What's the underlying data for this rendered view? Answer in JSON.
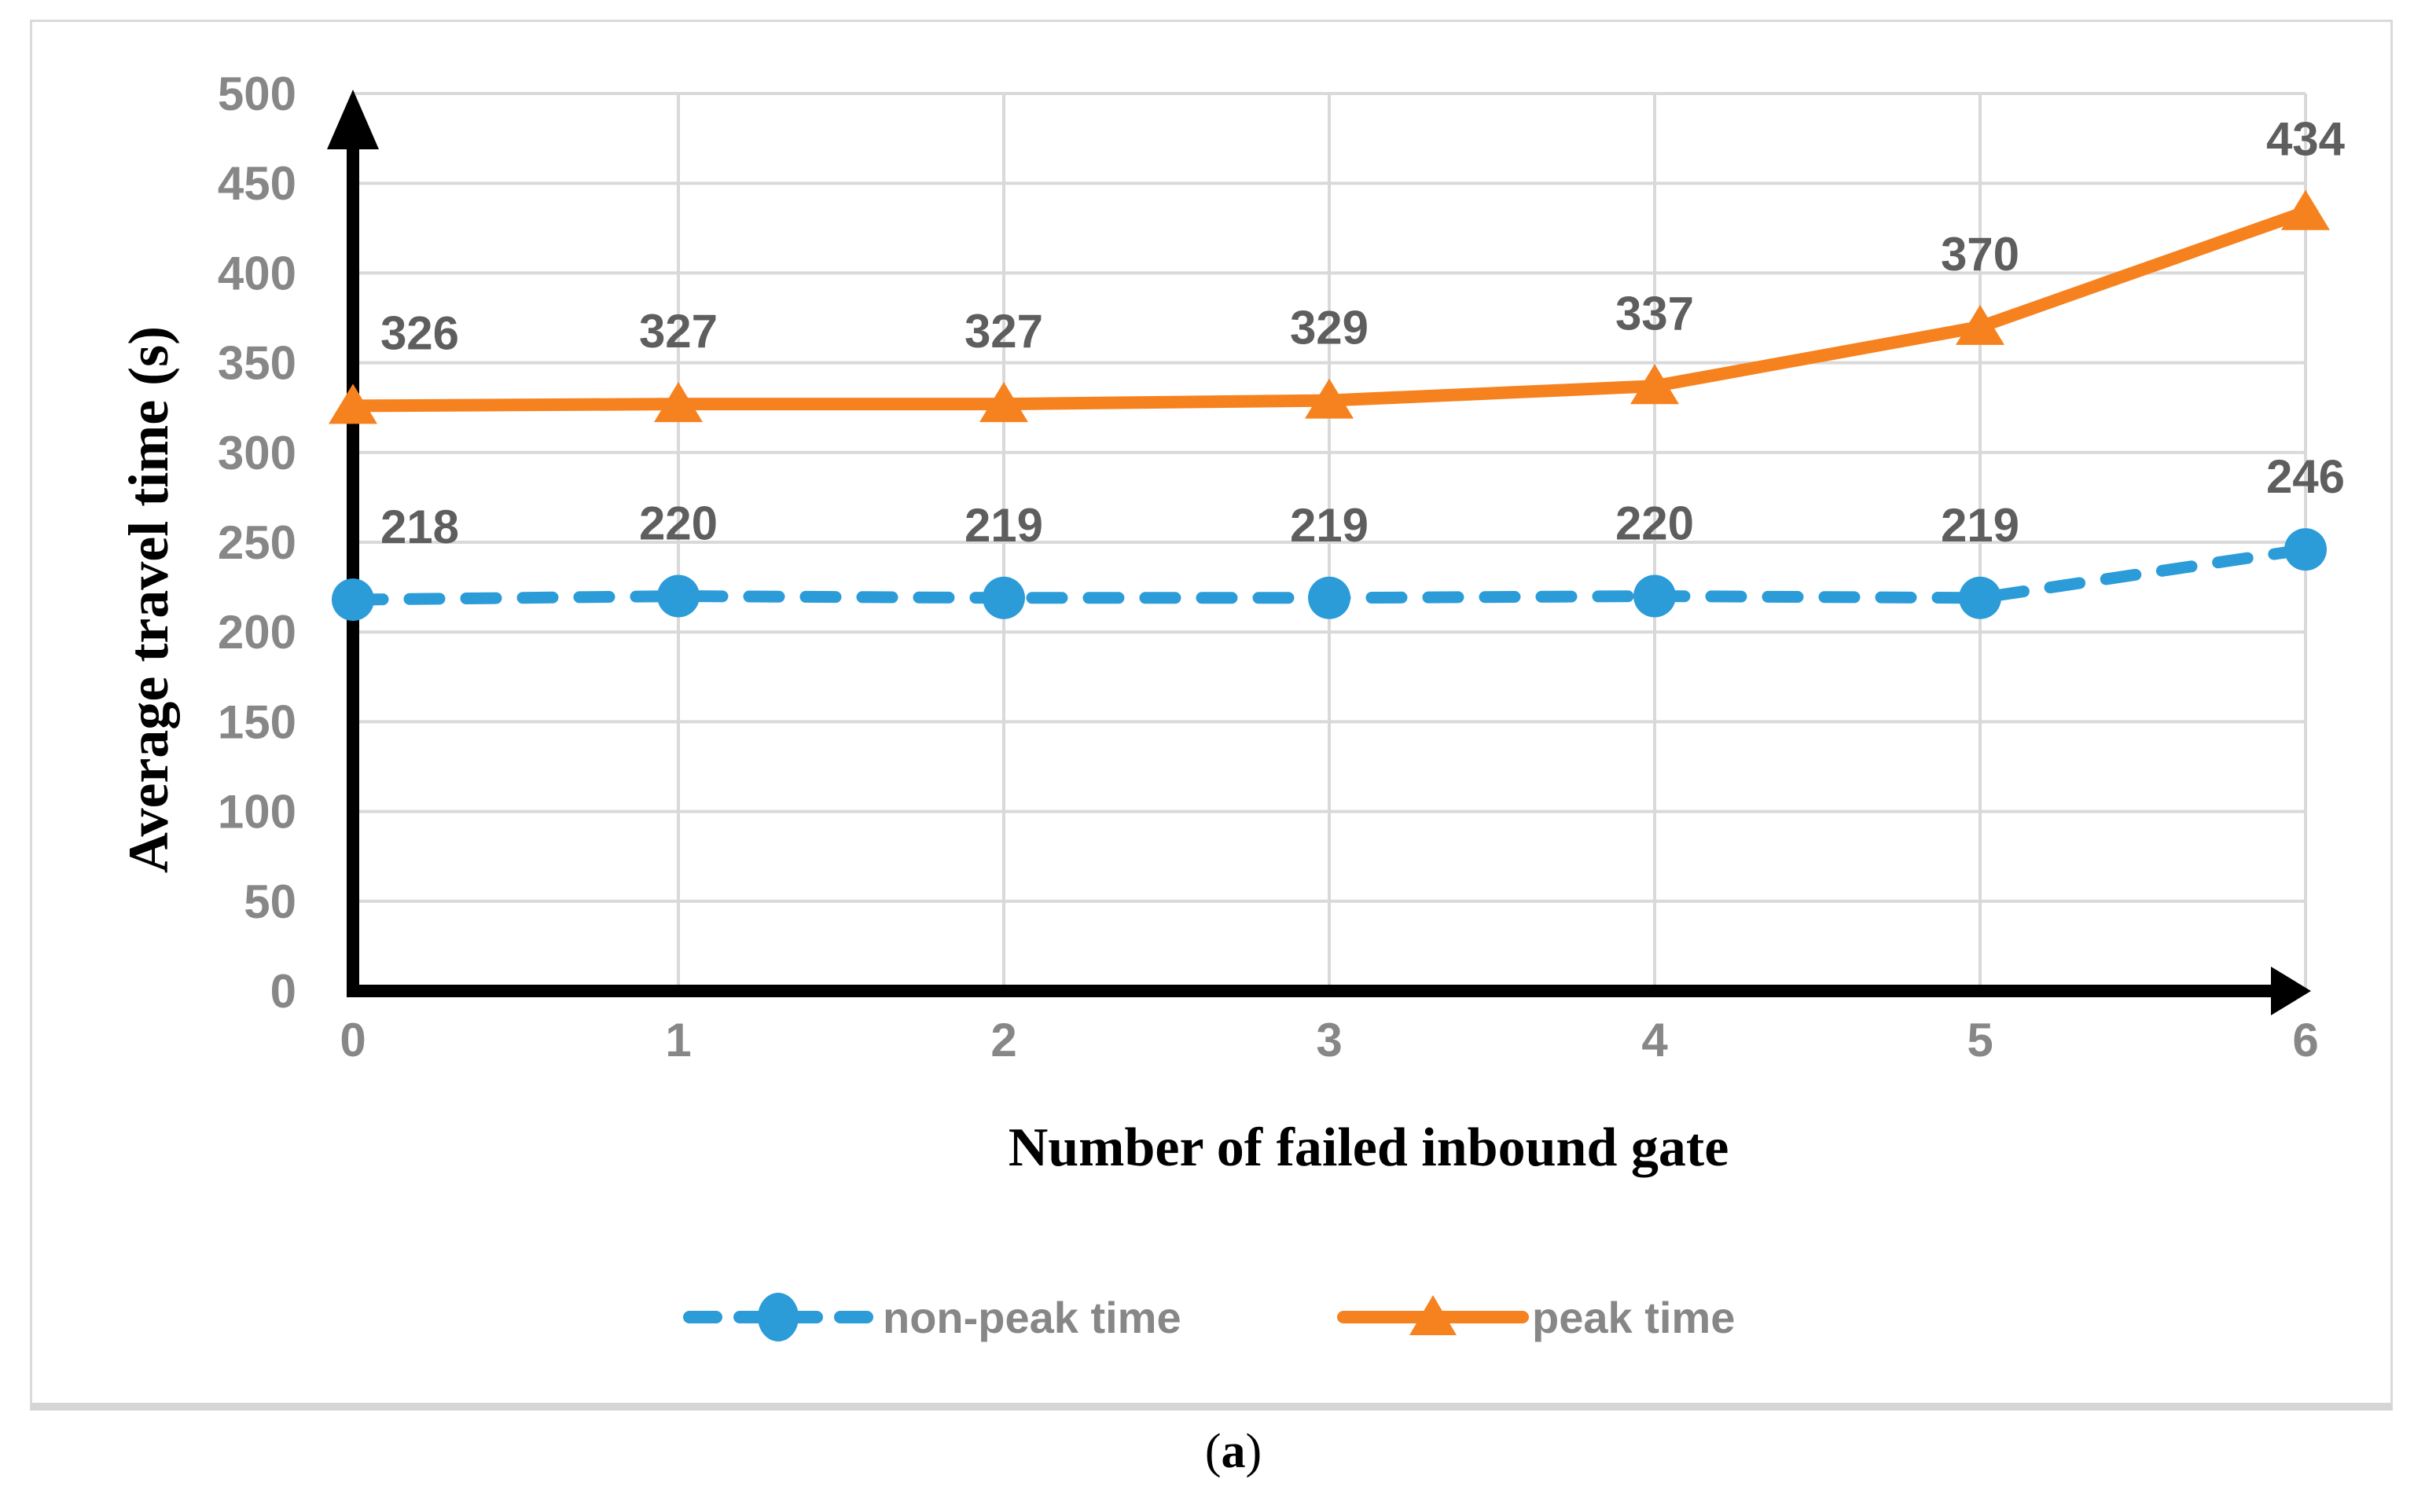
{
  "caption": {
    "open": "(",
    "letter": "a",
    "close": ")"
  },
  "chart_data": {
    "type": "line",
    "title": "",
    "xlabel": "Number of failed inbound gate",
    "ylabel": "Average travel time (s)",
    "categories": [
      "0",
      "1",
      "2",
      "3",
      "4",
      "5",
      "6"
    ],
    "x_values": [
      0,
      1,
      2,
      3,
      4,
      5,
      6
    ],
    "ylim": [
      0,
      500
    ],
    "ytick_step": 50,
    "y_tick_labels": [
      "0",
      "50",
      "100",
      "150",
      "200",
      "250",
      "300",
      "350",
      "400",
      "450",
      "500"
    ],
    "grid": true,
    "axis_arrows": true,
    "legend_position": "bottom-center",
    "series": [
      {
        "name": "non-peak time",
        "values": [
          218,
          220,
          219,
          219,
          220,
          219,
          246
        ],
        "color": "#2B9CD8",
        "line_style": "dashed",
        "marker": "circle",
        "data_labels": true
      },
      {
        "name": "peak time",
        "values": [
          326,
          327,
          327,
          329,
          337,
          370,
          434
        ],
        "color": "#F6821F",
        "line_style": "solid",
        "marker": "triangle",
        "data_labels": true
      }
    ],
    "colors": {
      "gridline": "#D9D9D9",
      "axis": "#000000",
      "tick_label": "#878787",
      "data_label": "#5E5E5E",
      "legend_label": "#878787",
      "chart_border": "#DADADA",
      "background": "#FFFFFF"
    }
  }
}
